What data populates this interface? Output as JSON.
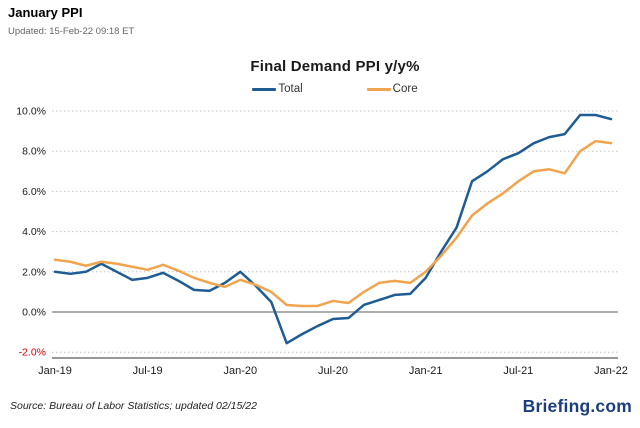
{
  "header": {
    "title": "January PPI",
    "updated": "Updated: 15-Feb-22 09:18 ET"
  },
  "colors": {
    "total_line": "#1e5c93",
    "core_line": "#f0a44e",
    "brand": "#1c3e7d",
    "negative_tick_label": "#d40000",
    "tick_label": "#1a1a1a",
    "gridline": "#c2c2c2",
    "zero_line": "#a3a3a3",
    "axis": "#8a8a8a"
  },
  "chart_data": {
    "type": "line",
    "title": "Final Demand PPI y/y%",
    "xlabel": "",
    "ylabel": "",
    "ylim": [
      -2.3,
      10.4
    ],
    "grid": "horizontal-dotted",
    "legend_position": "top-center",
    "y_ticks": [
      {
        "value": 10,
        "label": "10.0%"
      },
      {
        "value": 8,
        "label": "8.0%"
      },
      {
        "value": 6,
        "label": "6.0%"
      },
      {
        "value": 4,
        "label": "4.0%"
      },
      {
        "value": 2,
        "label": "2.0%"
      },
      {
        "value": 0,
        "label": "0.0%"
      },
      {
        "value": -2,
        "label": "-2.0%"
      }
    ],
    "x_ticks": [
      {
        "index": 0,
        "label": "Jan-19"
      },
      {
        "index": 6,
        "label": "Jul-19"
      },
      {
        "index": 12,
        "label": "Jan-20"
      },
      {
        "index": 18,
        "label": "Jul-20"
      },
      {
        "index": 24,
        "label": "Jan-21"
      },
      {
        "index": 30,
        "label": "Jul-21"
      },
      {
        "index": 36,
        "label": "Jan-22"
      }
    ],
    "categories": [
      "Jan-19",
      "Feb-19",
      "Mar-19",
      "Apr-19",
      "May-19",
      "Jun-19",
      "Jul-19",
      "Aug-19",
      "Sep-19",
      "Oct-19",
      "Nov-19",
      "Dec-19",
      "Jan-20",
      "Feb-20",
      "Mar-20",
      "Apr-20",
      "May-20",
      "Jun-20",
      "Jul-20",
      "Aug-20",
      "Sep-20",
      "Oct-20",
      "Nov-20",
      "Dec-20",
      "Jan-21",
      "Feb-21",
      "Mar-21",
      "Apr-21",
      "May-21",
      "Jun-21",
      "Jul-21",
      "Aug-21",
      "Sep-21",
      "Oct-21",
      "Nov-21",
      "Dec-21",
      "Jan-22"
    ],
    "series": [
      {
        "name": "Total",
        "color": "#1e5c93",
        "values": [
          2.0,
          1.9,
          2.0,
          2.4,
          2.0,
          1.6,
          1.7,
          1.95,
          1.55,
          1.1,
          1.05,
          1.45,
          2.0,
          1.3,
          0.5,
          -1.55,
          -1.1,
          -0.7,
          -0.35,
          -0.3,
          0.35,
          0.6,
          0.85,
          0.9,
          1.7,
          3.0,
          4.2,
          6.5,
          7.0,
          7.6,
          7.9,
          8.4,
          8.7,
          8.85,
          9.8,
          9.8,
          9.6
        ]
      },
      {
        "name": "Core",
        "color": "#f0a44e",
        "values": [
          2.6,
          2.5,
          2.3,
          2.5,
          2.4,
          2.25,
          2.1,
          2.35,
          2.05,
          1.7,
          1.45,
          1.25,
          1.6,
          1.35,
          1.0,
          0.35,
          0.3,
          0.3,
          0.55,
          0.45,
          1.0,
          1.45,
          1.55,
          1.45,
          2.0,
          2.8,
          3.7,
          4.8,
          5.4,
          5.9,
          6.5,
          7.0,
          7.1,
          6.9,
          8.0,
          8.5,
          8.4
        ]
      }
    ]
  },
  "footer": {
    "source": "Source: Bureau of Labor Statistics; updated 02/15/22",
    "brand": "Briefing.com"
  }
}
